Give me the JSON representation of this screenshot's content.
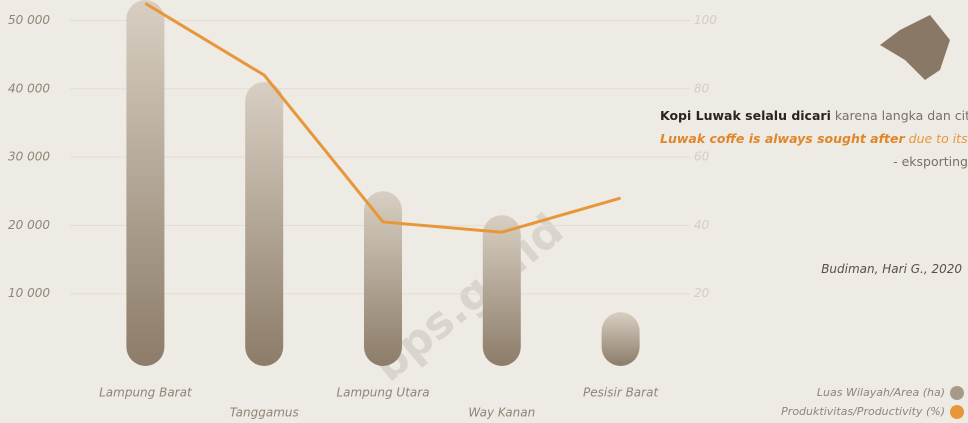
{
  "chart_data": {
    "type": "bar-line",
    "categories": [
      "Lampung Barat",
      "Tanggamus",
      "Lampung Utara",
      "Way Kanan",
      "Pesisir Barat"
    ],
    "series": [
      {
        "name": "Luas Wilayah/Area (ha)",
        "color": "#a89a88",
        "values": [
          53000,
          41000,
          25000,
          21500,
          7300
        ]
      },
      {
        "name": "Produktivitas/Productivity (%)",
        "color": "#e8963a",
        "axis": "y2",
        "values": [
          105,
          84,
          41,
          38,
          48
        ]
      }
    ],
    "ylim": [
      0,
      53000
    ],
    "yticks": [
      {
        "value": 10000,
        "label": "10 000"
      },
      {
        "value": 20000,
        "label": "20 000"
      },
      {
        "value": 30000,
        "label": "30 000"
      },
      {
        "value": 40000,
        "label": "40 000"
      },
      {
        "value": 50000,
        "label": "50 000"
      }
    ],
    "y2lim": [
      0,
      106
    ],
    "y2ticks": [
      20,
      40,
      60,
      80,
      100
    ],
    "grid": true,
    "legend": "bottom-right"
  },
  "quote": {
    "bold": "Kopi Luwak selalu dicari",
    "rest": "karena langka dan citra kemewahannya",
    "en_bold": "Luwak coffe is always sought after",
    "en_rest": "due to its rarity and luxury",
    "source": "- eksporting",
    "citation": "Budiman, Hari G., 2020"
  },
  "watermark": "bps.go.id"
}
